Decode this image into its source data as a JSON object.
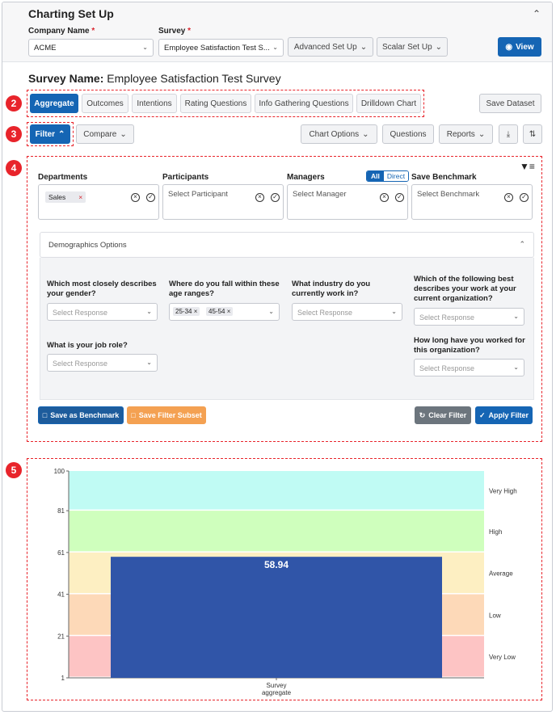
{
  "header": {
    "title": "Charting Set Up"
  },
  "company": {
    "label": "Company Name",
    "value": "ACME"
  },
  "survey": {
    "label": "Survey",
    "value": "Employee Satisfaction Test S..."
  },
  "buttons": {
    "advanced": "Advanced Set Up",
    "scalar": "Scalar Set Up",
    "view": "View",
    "save_dataset": "Save Dataset",
    "filter": "Filter",
    "compare": "Compare",
    "chart_options": "Chart Options",
    "questions": "Questions",
    "reports": "Reports",
    "save_benchmark": "Save as Benchmark",
    "save_subset": "Save Filter Subset",
    "clear_filter": "Clear Filter",
    "apply_filter": "Apply Filter"
  },
  "survey_name": {
    "label": "Survey Name:",
    "value": "Employee Satisfaction Test Survey"
  },
  "tabs": [
    {
      "label": "Aggregate"
    },
    {
      "label": "Outcomes"
    },
    {
      "label": "Intentions"
    },
    {
      "label": "Rating Questions"
    },
    {
      "label": "Info Gathering Questions"
    },
    {
      "label": "Drilldown Chart"
    }
  ],
  "badges": [
    "2",
    "3",
    "4",
    "5"
  ],
  "filters": {
    "departments": {
      "label": "Departments",
      "chip": "Sales"
    },
    "participants": {
      "label": "Participants",
      "placeholder": "Select Participant"
    },
    "managers": {
      "label": "Managers",
      "placeholder": "Select Manager",
      "toggle_all": "All",
      "toggle_direct": "Direct"
    },
    "benchmark": {
      "label": "Save Benchmark",
      "placeholder": "Select Benchmark"
    }
  },
  "demographics": {
    "title": "Demographics Options",
    "q_gender": "Which most closely describes your gender?",
    "q_age": "Where do you fall within these age ranges?",
    "q_industry": "What industry do you currently work in?",
    "q_work": "Which of the following best describes your work at your current organization?",
    "q_role": "What is your job role?",
    "q_tenure": "How long have you worked for this organization?",
    "placeholder": "Select Response",
    "age_chips": [
      "25-34",
      "45-54"
    ]
  },
  "chart_data": {
    "type": "bar",
    "categories": [
      "Survey aggregate"
    ],
    "values": [
      58.94
    ],
    "data_label": "58.94",
    "xlabel": "Survey\naggregate",
    "ylim": [
      1,
      100
    ],
    "yticks": [
      1,
      21,
      41,
      61,
      81,
      100
    ],
    "bands": [
      {
        "name": "Very Low",
        "from": 1,
        "to": 21,
        "color": "#fdc4c4"
      },
      {
        "name": "Low",
        "from": 21,
        "to": 41,
        "color": "#fdd9b8"
      },
      {
        "name": "Average",
        "from": 41,
        "to": 61,
        "color": "#fdefc2"
      },
      {
        "name": "High",
        "from": 61,
        "to": 81,
        "color": "#cfffbd"
      },
      {
        "name": "Very High",
        "from": 81,
        "to": 100,
        "color": "#c0fbf4"
      }
    ],
    "bar_color": "#3055a8"
  }
}
